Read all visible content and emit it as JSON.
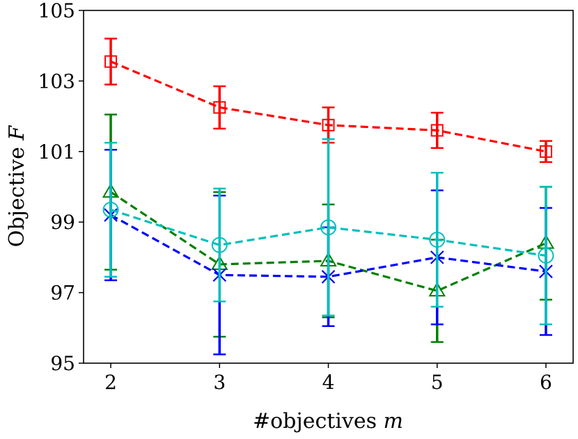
{
  "chart_data": {
    "type": "line",
    "title": "",
    "xlabel": "#objectives",
    "xlabel_var": "m",
    "ylabel": "Objective",
    "ylabel_var": "F",
    "x": [
      2,
      3,
      4,
      5,
      6
    ],
    "xlim": [
      1.75,
      6.25
    ],
    "ylim": [
      95,
      105
    ],
    "yticks": [
      95,
      97,
      99,
      101,
      103,
      105
    ],
    "xticks": [
      2,
      3,
      4,
      5,
      6
    ],
    "grid": false,
    "series": [
      {
        "name": "red-square",
        "color": "#ff0000",
        "marker": "square",
        "values": [
          103.55,
          102.25,
          101.75,
          101.6,
          101.0
        ],
        "err": [
          0.65,
          0.6,
          0.5,
          0.5,
          0.3
        ]
      },
      {
        "name": "green-triangle",
        "color": "#008000",
        "marker": "triangle",
        "values": [
          99.85,
          97.8,
          97.9,
          97.05,
          98.4
        ],
        "err": [
          2.2,
          2.05,
          1.6,
          1.45,
          1.6
        ]
      },
      {
        "name": "blue-x",
        "color": "#0000ff",
        "marker": "x",
        "values": [
          99.2,
          97.5,
          97.45,
          98.0,
          97.6
        ],
        "err": [
          1.85,
          2.25,
          1.4,
          1.9,
          1.8
        ]
      },
      {
        "name": "cyan-circle",
        "color": "#00bfbf",
        "marker": "circle",
        "values": [
          99.35,
          98.35,
          98.85,
          98.5,
          98.05
        ],
        "err": [
          1.9,
          1.6,
          2.5,
          1.9,
          1.95
        ]
      }
    ]
  }
}
